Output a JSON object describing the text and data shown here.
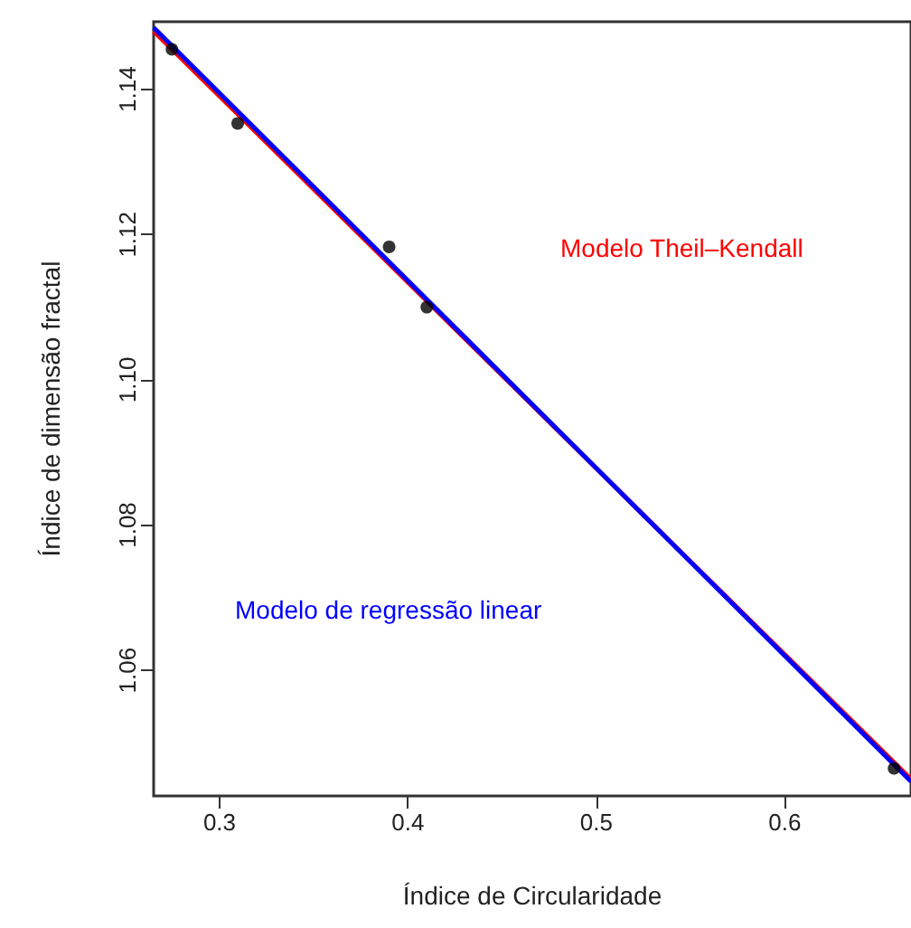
{
  "chart_data": {
    "type": "scatter",
    "xlabel": "Índice de Circularidade",
    "ylabel": "Índice de dimensão fractal",
    "xlim": [
      0.265,
      0.667
    ],
    "xticks": [
      0.3,
      0.4,
      0.5,
      0.6
    ],
    "ylim": [
      1.0427,
      1.1493
    ],
    "yticks": [
      {
        "value": 1.06,
        "label": "1.06"
      },
      {
        "value": 1.08,
        "label": "1.08"
      },
      {
        "value": 1.1,
        "label": "1.10"
      },
      {
        "value": 1.12,
        "label": "1.12"
      },
      {
        "value": 1.14,
        "label": "1.14"
      }
    ],
    "grid": false,
    "legend": false,
    "series": [
      {
        "marker": "circle",
        "color": "#000000",
        "x": [
          0.2747,
          0.3096,
          0.39,
          0.41,
          0.658
        ],
        "values": [
          1.1455,
          1.1353,
          1.1183,
          1.11,
          1.0465
        ]
      },
      {
        "type": "line",
        "name": "Modelo Theil–Kendall",
        "color": "#ff0000",
        "x": [
          0.265,
          0.667
        ],
        "values": [
          1.148,
          1.045
        ]
      },
      {
        "type": "line",
        "name": "Modelo de regressão linear",
        "color": "#0000ff",
        "x": [
          0.265,
          0.667
        ],
        "values": [
          1.1485,
          1.0447
        ]
      }
    ]
  }
}
